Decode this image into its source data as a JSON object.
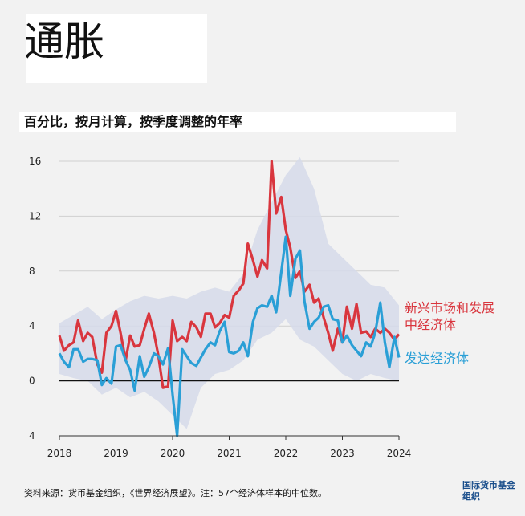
{
  "title": "通胀",
  "subtitle": "百分比，按月计算，按季度调整的年率",
  "footer": "资料来源：货币基金组织，《世界经济展望》。注：57个经济体样本的中位数。",
  "logo_text": "国际货币基金组织",
  "colors": {
    "emerging": "#d9363e",
    "advanced": "#2a9fd6",
    "band": "#d6dbea",
    "grid": "#d0d0d0",
    "zero": "#111111"
  },
  "chart_data": {
    "type": "line",
    "title": "通胀",
    "subtitle": "百分比，按月计算，按季度调整的年率",
    "xlabel": "",
    "ylabel": "",
    "x_tick_labels": [
      "2018",
      "2019",
      "2020",
      "2021",
      "2022",
      "2023",
      "2024"
    ],
    "y_tick_labels": [
      "16",
      "12",
      "8",
      "4",
      "0",
      "4"
    ],
    "y_ticks": [
      16,
      12,
      8,
      4,
      0,
      -4
    ],
    "ylim": [
      -4,
      16
    ],
    "xlim": [
      2018.0,
      2024.0
    ],
    "grid": true,
    "series": [
      {
        "name": "新兴市场和发展中经济体",
        "color": "#d9363e",
        "x": [
          2018.0,
          2018.08,
          2018.17,
          2018.25,
          2018.33,
          2018.42,
          2018.5,
          2018.58,
          2018.67,
          2018.75,
          2018.83,
          2018.92,
          2019.0,
          2019.08,
          2019.17,
          2019.25,
          2019.33,
          2019.42,
          2019.5,
          2019.58,
          2019.67,
          2019.75,
          2019.83,
          2019.92,
          2020.0,
          2020.08,
          2020.17,
          2020.25,
          2020.33,
          2020.42,
          2020.5,
          2020.58,
          2020.67,
          2020.75,
          2020.83,
          2020.92,
          2021.0,
          2021.08,
          2021.17,
          2021.25,
          2021.33,
          2021.42,
          2021.5,
          2021.58,
          2021.67,
          2021.75,
          2021.83,
          2021.92,
          2022.0,
          2022.08,
          2022.17,
          2022.25,
          2022.33,
          2022.42,
          2022.5,
          2022.58,
          2022.67,
          2022.75,
          2022.83,
          2022.92,
          2023.0,
          2023.08,
          2023.17,
          2023.25,
          2023.33,
          2023.42,
          2023.5,
          2023.58,
          2023.67,
          2023.75,
          2023.83,
          2023.92,
          2024.0
        ],
        "values": [
          3.3,
          2.2,
          2.6,
          2.8,
          4.4,
          2.9,
          3.5,
          3.2,
          1.2,
          0.6,
          3.5,
          4.0,
          5.1,
          3.5,
          1.5,
          3.3,
          2.5,
          2.6,
          3.8,
          4.9,
          3.5,
          1.8,
          -0.5,
          -0.4,
          4.4,
          2.9,
          3.2,
          2.9,
          4.3,
          3.9,
          3.2,
          4.9,
          4.9,
          3.9,
          4.2,
          4.8,
          4.6,
          6.2,
          6.6,
          7.1,
          10.0,
          8.8,
          7.6,
          8.8,
          8.2,
          16.0,
          12.2,
          13.4,
          11.0,
          9.7,
          7.5,
          8.0,
          6.5,
          7.0,
          5.7,
          6.0,
          4.6,
          3.5,
          2.2,
          3.8,
          2.8,
          5.4,
          3.8,
          5.6,
          3.5,
          3.6,
          3.2,
          3.8,
          3.5,
          3.8,
          3.5,
          3.0,
          3.4
        ]
      },
      {
        "name": "发达经济体",
        "color": "#2a9fd6",
        "x": [
          2018.0,
          2018.08,
          2018.17,
          2018.25,
          2018.33,
          2018.42,
          2018.5,
          2018.58,
          2018.67,
          2018.75,
          2018.83,
          2018.92,
          2019.0,
          2019.08,
          2019.17,
          2019.25,
          2019.33,
          2019.42,
          2019.5,
          2019.58,
          2019.67,
          2019.75,
          2019.83,
          2019.92,
          2020.0,
          2020.08,
          2020.17,
          2020.25,
          2020.33,
          2020.42,
          2020.5,
          2020.58,
          2020.67,
          2020.75,
          2020.83,
          2020.92,
          2021.0,
          2021.08,
          2021.17,
          2021.25,
          2021.33,
          2021.42,
          2021.5,
          2021.58,
          2021.67,
          2021.75,
          2021.83,
          2021.92,
          2022.0,
          2022.08,
          2022.17,
          2022.25,
          2022.33,
          2022.42,
          2022.5,
          2022.58,
          2022.67,
          2022.75,
          2022.83,
          2022.92,
          2023.0,
          2023.08,
          2023.17,
          2023.25,
          2023.33,
          2023.42,
          2023.5,
          2023.58,
          2023.67,
          2023.75,
          2023.83,
          2023.92,
          2024.0
        ],
        "values": [
          2.0,
          1.4,
          1.0,
          2.3,
          2.3,
          1.4,
          1.6,
          1.6,
          1.5,
          -0.3,
          0.2,
          -0.2,
          2.5,
          2.6,
          1.5,
          0.8,
          -0.7,
          1.8,
          0.3,
          1.0,
          2.0,
          1.8,
          1.2,
          2.4,
          -1.0,
          -4.0,
          2.3,
          1.8,
          1.3,
          1.1,
          1.7,
          2.3,
          2.8,
          2.6,
          3.6,
          4.3,
          2.1,
          2.0,
          2.2,
          2.8,
          1.8,
          4.3,
          5.3,
          5.5,
          5.4,
          6.2,
          5.0,
          7.9,
          10.5,
          6.2,
          8.9,
          9.5,
          5.8,
          3.8,
          4.3,
          4.6,
          5.4,
          5.5,
          4.5,
          4.4,
          2.8,
          3.3,
          2.6,
          2.2,
          1.8,
          2.8,
          2.5,
          3.5,
          5.7,
          2.8,
          1.0,
          3.2,
          1.7
        ]
      }
    ],
    "band": {
      "x": [
        2018.0,
        2018.25,
        2018.5,
        2018.75,
        2019.0,
        2019.25,
        2019.5,
        2019.75,
        2020.0,
        2020.25,
        2020.5,
        2020.75,
        2021.0,
        2021.25,
        2021.5,
        2021.75,
        2022.0,
        2022.25,
        2022.5,
        2022.75,
        2023.0,
        2023.25,
        2023.5,
        2023.75,
        2024.0
      ],
      "upper": [
        4.2,
        4.8,
        5.4,
        4.5,
        5.2,
        5.8,
        6.2,
        6.0,
        6.2,
        6.0,
        6.5,
        6.8,
        6.5,
        7.8,
        11.0,
        13.0,
        15.0,
        16.3,
        14.0,
        10.0,
        9.0,
        8.0,
        7.0,
        6.8,
        5.5
      ],
      "lower": [
        0.5,
        0.2,
        0.0,
        -1.0,
        -0.5,
        -1.2,
        -0.8,
        -1.5,
        -2.5,
        -3.5,
        -0.5,
        0.5,
        0.8,
        1.5,
        3.0,
        3.5,
        4.5,
        3.0,
        2.5,
        1.5,
        0.5,
        0.0,
        0.5,
        0.2,
        0.0
      ]
    }
  }
}
